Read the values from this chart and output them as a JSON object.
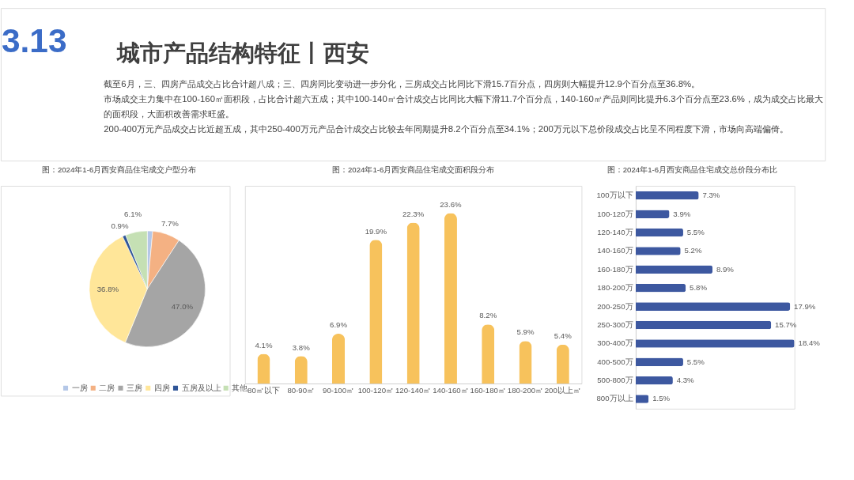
{
  "chart_data": [
    {
      "type": "other",
      "title": "城市产品结构特征丨西安",
      "annotations": [
        "3.13",
        "截至6月，三、四房产品成交占比合计超八成；三、四房同比变动进一步分化，三房成交占比同比下滑15.7百分点，四房则大幅提升12.9个百分点至36.8%。",
        "市场成交主力集中在100-160㎡面积段，占比合计超六五成；其中100-140㎡合计成交占比同比大幅下滑11.7个百分点，140-160㎡产品则同比提升6.3个百分点至23.6%，成为成交占比最大的面积段，大面积改善需求旺盛。",
        "200-400万元产品成交占比近超五成，其中250-400万元产品合计成交占比较去年同期提升8.2个百分点至34.1%；200万元以下总价段成交占比呈不同程度下滑，市场向高端偏倚。"
      ]
    },
    {
      "type": "pie",
      "title": "图：2024年1-6月西安商品住宅成交户型分布",
      "categories": [
        "一房",
        "二房",
        "三房",
        "四房",
        "五房及以上",
        "其他"
      ],
      "values": [
        1.5,
        7.7,
        47.0,
        36.8,
        0.9,
        6.1
      ],
      "colors": [
        "#b4c7e7",
        "#f4b183",
        "#a5a5a5",
        "#ffe699",
        "#2f5597",
        "#c5e0b4"
      ],
      "value_labels": [
        null,
        "7.7%",
        "47.0%",
        "36.8%",
        "0.9%",
        "6.1%"
      ],
      "legend": "bottom"
    },
    {
      "type": "bar",
      "title": "图：2024年1-6月西安商品住宅成交面积段分布",
      "categories": [
        "80㎡以下",
        "80-90㎡",
        "90-100㎡",
        "100-120㎡",
        "120-140㎡",
        "140-160㎡",
        "160-180㎡",
        "180-200㎡",
        "200以上㎡"
      ],
      "values": [
        4.1,
        3.8,
        6.9,
        19.9,
        22.3,
        23.6,
        8.2,
        5.9,
        5.4
      ],
      "color": "#f7c25c",
      "value_labels": [
        "4.1%",
        "3.8%",
        "6.9%",
        "19.9%",
        "22.3%",
        "23.6%",
        "8.2%",
        "5.9%",
        "5.4%"
      ],
      "tick_labels": "x"
    },
    {
      "type": "bar",
      "orientation": "horizontal",
      "title": "图：2024年1-6月西安商品住宅成交总价段分布比",
      "categories": [
        "100万以下",
        "100-120万",
        "120-140万",
        "140-160万",
        "160-180万",
        "180-200万",
        "200-250万",
        "250-300万",
        "300-400万",
        "400-500万",
        "500-800万",
        "800万以上"
      ],
      "values": [
        7.3,
        3.9,
        5.5,
        5.2,
        8.9,
        5.8,
        17.9,
        15.7,
        18.4,
        5.5,
        4.3,
        1.5
      ],
      "color": "#3d58a0",
      "value_labels": [
        "7.3%",
        "3.9%",
        "5.5%",
        "5.2%",
        "8.9%",
        "5.8%",
        "17.9%",
        "15.7%",
        "18.4%",
        "5.5%",
        "4.3%",
        "1.5%"
      ],
      "tick_labels": "y"
    }
  ]
}
